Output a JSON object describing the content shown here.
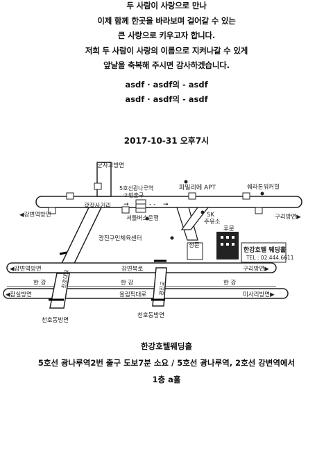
{
  "invitation": {
    "lines": [
      "두 사람이 사랑으로 만나",
      "이제 함께 한곳을 바라보며 걸어갈 수 있는",
      "큰 사랑으로 키우고자 합니다.",
      "저희 두 사람이 사랑의 이름으로 지켜나갈 수 있게",
      "앞날을 축복해 주시면 감사하겠습니다."
    ]
  },
  "parents": [
    "asdf · asdf의 - asdf",
    "asdf · asdf의 - asdf"
  ],
  "datetime": "2017-10-31 오후7시",
  "map": {
    "labels": {
      "gunja": "군자교방면",
      "line5_station": "5호선광나루역",
      "exit2": "②번출구",
      "apt": "파밀리에 APT",
      "sheraton": "쉐라톤워커힐",
      "gwangjang": "광장사거리",
      "gangbyeon_dir": "◀강변역방면",
      "shuttle": "셔틀버스운행",
      "sk": "SK",
      "gas": "주유소",
      "guri_dir": "구리방면▶",
      "gwangjin_center": "광진구민체육센터",
      "hubmun": "후문",
      "jeongmun": "정문",
      "hotel_name": "한강호텔 웨딩홀",
      "tel": "TEL : 02.444.6611",
      "gangbyeon_left": "◀강변역방면",
      "gangbyeonbuk": "강변북로",
      "guri_right": "구리방면▶",
      "han1": "한 강",
      "han2": "한 강",
      "han3": "한 강",
      "jamsil": "◀잠실방면",
      "olympic": "올림픽대로",
      "misari": "미사리방면▶",
      "cheonho_bridge": "천호대교",
      "gwangjin_bridge": "광진교",
      "cheonho_dong1": "천호동방면",
      "cheonho_dong2": "천호동방면"
    }
  },
  "venue": {
    "name": "한강호텔웨딩홀",
    "directions": "5호선 광나루역2번 출구 도보7분 소요 / 5호선 광나루역, 2호선 강변역에서",
    "hall": "1층 a홀"
  }
}
